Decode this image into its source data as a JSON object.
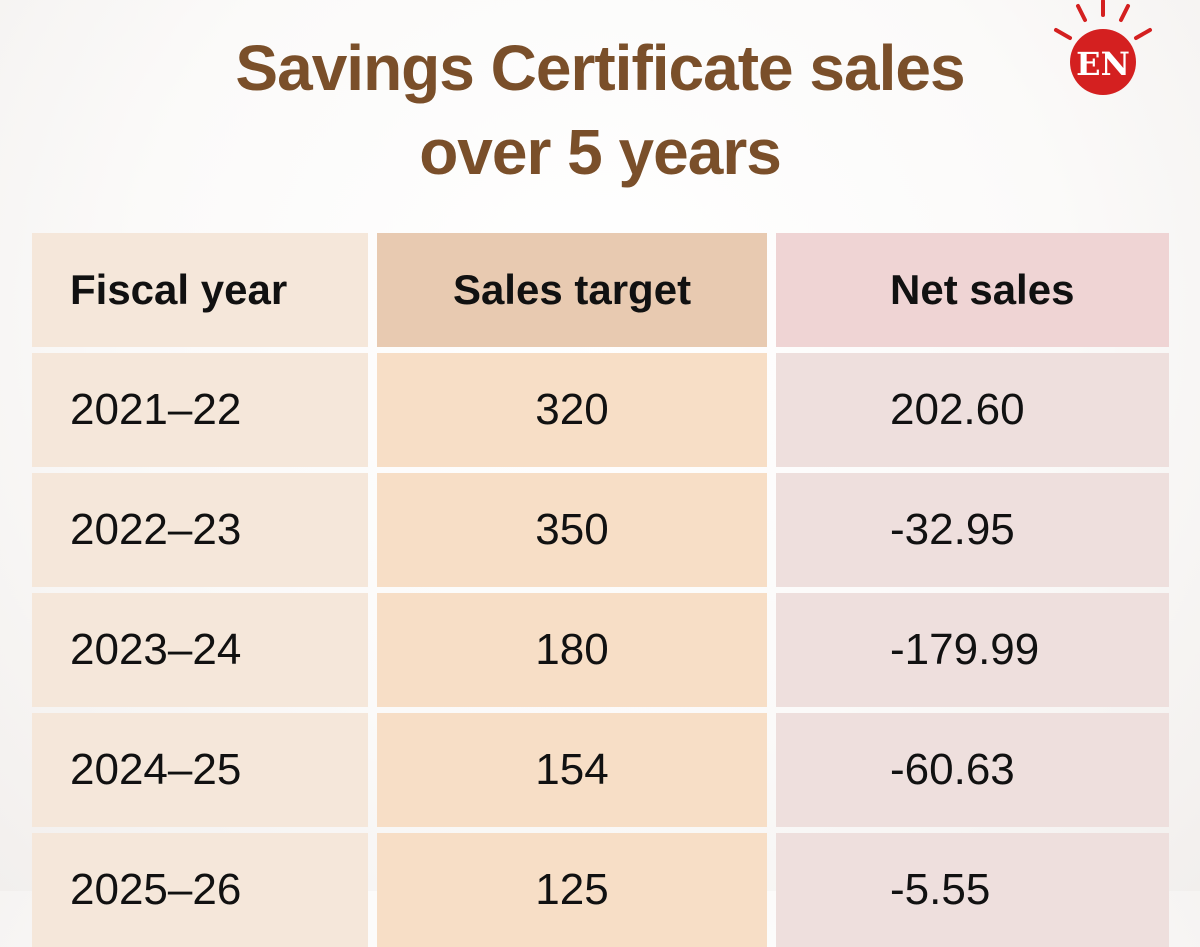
{
  "title": {
    "line1": "Savings Certificate sales",
    "line2": "over 5 years"
  },
  "logo": {
    "text": "EN",
    "color": "#d42020",
    "icon": "sunburst-badge-icon"
  },
  "chart_data": {
    "type": "table",
    "title": "Savings Certificate sales over 5 years",
    "columns": [
      "Fiscal year",
      "Sales target",
      "Net sales"
    ],
    "rows": [
      [
        "2021–22",
        "320",
        "202.60"
      ],
      [
        "2022–23",
        "350",
        "-32.95"
      ],
      [
        "2023–24",
        "180",
        "-179.99"
      ],
      [
        "2024–25",
        "154",
        "-60.63"
      ],
      [
        "2025–26",
        "125",
        "-5.55"
      ]
    ]
  },
  "colors": {
    "title": "#7a4f2a",
    "col1": "#f5e7da",
    "col2": "#f7dec6",
    "col2_header": "#e8cab1",
    "col3": "#eedfdd",
    "col3_header": "#efd4d4"
  }
}
